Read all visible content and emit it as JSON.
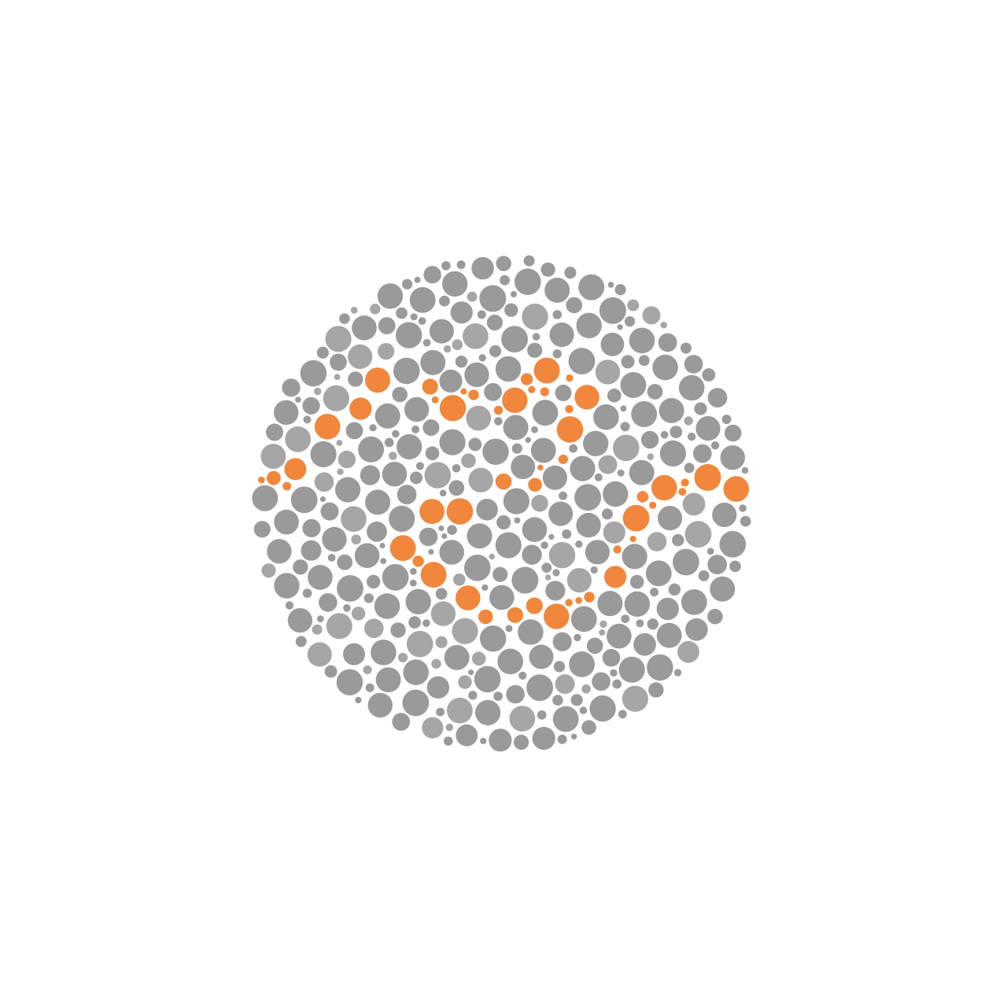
{
  "image": {
    "kind": "color-vision-test-plate",
    "description_visible_text": "",
    "colors": {
      "background": "#ffffff",
      "dot_background": "#9a9a9a",
      "dot_background_light": "#a6a6a6",
      "figure_dots": "#f0873c"
    },
    "figure": {
      "shape": "numeral-like curved path",
      "visible_label": ""
    }
  }
}
